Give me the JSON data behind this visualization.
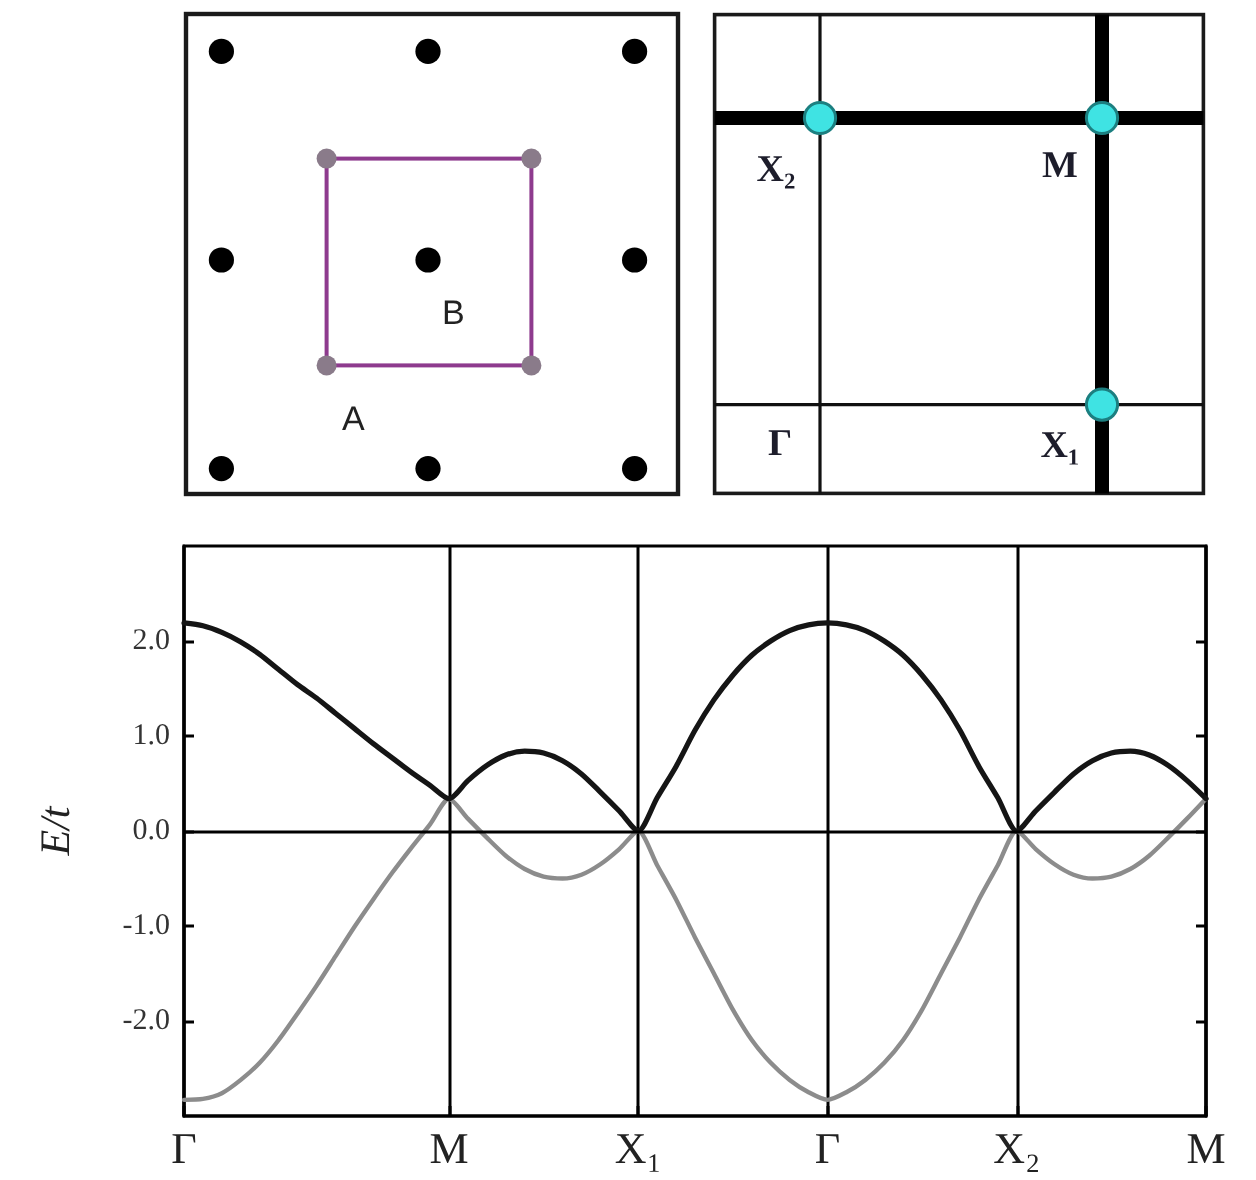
{
  "chart_data": {
    "type": "line",
    "ylabel": "E/t",
    "annotations": [
      "A",
      "B",
      "Γ",
      "X₁",
      "M",
      "X₂"
    ],
    "categories": [
      "Γ",
      null,
      null,
      null,
      null,
      null,
      null,
      null,
      null,
      null,
      null,
      null,
      null,
      null,
      "M",
      null,
      null,
      null,
      null,
      null,
      null,
      null,
      null,
      null,
      "X₁",
      null,
      null,
      null,
      null,
      null,
      null,
      null,
      null,
      null,
      "Γ",
      null,
      null,
      null,
      null,
      null,
      null,
      null,
      null,
      null,
      "X₂",
      null,
      null,
      null,
      null,
      null,
      null,
      null,
      null,
      null,
      "M"
    ],
    "series": [
      {
        "color": "#8c8c8c",
        "values": [
          -2.83,
          -2.82,
          -2.76,
          -2.62,
          -2.44,
          -2.2,
          -1.92,
          -1.63,
          -1.32,
          -1.01,
          -0.72,
          -0.44,
          -0.18,
          0.07,
          0.34,
          0.13,
          -0.07,
          -0.26,
          -0.4,
          -0.48,
          -0.5,
          -0.46,
          -0.35,
          -0.19,
          0,
          -0.36,
          -0.72,
          -1.12,
          -1.5,
          -1.88,
          -2.2,
          -2.44,
          -2.62,
          -2.75,
          -2.83,
          -2.75,
          -2.62,
          -2.44,
          -2.2,
          -1.88,
          -1.5,
          -1.12,
          -0.72,
          -0.36,
          0,
          -0.19,
          -0.35,
          -0.46,
          -0.5,
          -0.48,
          -0.4,
          -0.26,
          -0.07,
          0.13,
          0.34
        ]
      },
      {
        "color": "#151515",
        "values": [
          2.19,
          2.16,
          2.09,
          1.99,
          1.86,
          1.7,
          1.54,
          1.4,
          1.24,
          1.08,
          0.92,
          0.77,
          0.62,
          0.48,
          0.34,
          0.53,
          0.69,
          0.8,
          0.84,
          0.82,
          0.74,
          0.6,
          0.41,
          0.21,
          0,
          0.35,
          0.68,
          1.06,
          1.38,
          1.64,
          1.85,
          2.0,
          2.11,
          2.17,
          2.19,
          2.17,
          2.11,
          2.0,
          1.85,
          1.64,
          1.38,
          1.06,
          0.68,
          0.35,
          0,
          0.21,
          0.41,
          0.6,
          0.74,
          0.82,
          0.84,
          0.8,
          0.69,
          0.53,
          0.34
        ]
      }
    ],
    "ylim": [
      -3,
      3
    ],
    "yticks": [
      {
        "value": 2,
        "label": "2.0"
      },
      {
        "value": 1,
        "label": "1.0"
      },
      {
        "value": 0,
        "label": "0.0"
      },
      {
        "value": -1,
        "label": "-1.0"
      },
      {
        "value": -2,
        "label": "-2.0"
      }
    ],
    "grid": "x",
    "ref_lines": [
      {
        "axis": "y",
        "value": 0,
        "color": "#000000"
      }
    ]
  }
}
